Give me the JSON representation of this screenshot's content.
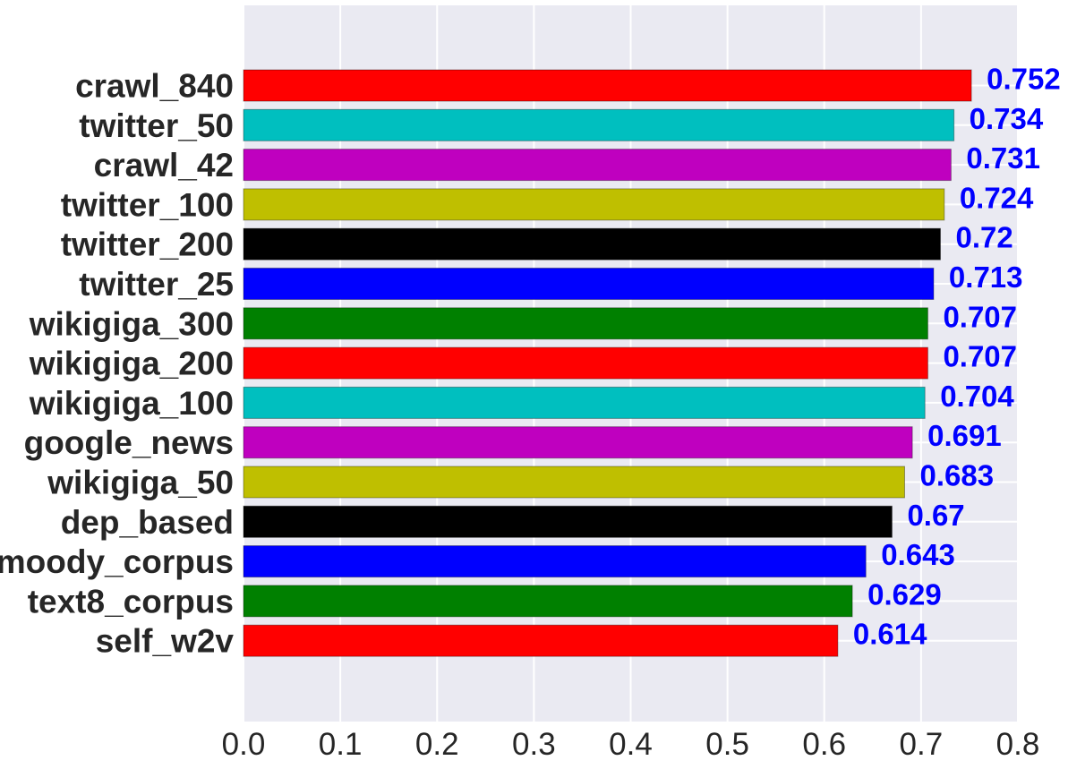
{
  "chart_data": {
    "type": "bar",
    "orientation": "horizontal",
    "title": "",
    "xlabel": "",
    "ylabel": "",
    "categories": [
      "crawl_840",
      "twitter_50",
      "crawl_42",
      "twitter_100",
      "twitter_200",
      "twitter_25",
      "wikigiga_300",
      "wikigiga_200",
      "wikigiga_100",
      "google_news",
      "wikigiga_50",
      "dep_based",
      "moody_corpus",
      "text8_corpus",
      "self_w2v"
    ],
    "values": [
      0.752,
      0.734,
      0.731,
      0.724,
      0.72,
      0.713,
      0.707,
      0.707,
      0.704,
      0.691,
      0.683,
      0.67,
      0.643,
      0.629,
      0.614
    ],
    "value_labels": [
      "0.752",
      "0.734",
      "0.731",
      "0.724",
      "0.72",
      "0.713",
      "0.707",
      "0.707",
      "0.704",
      "0.691",
      "0.683",
      "0.67",
      "0.643",
      "0.629",
      "0.614"
    ],
    "bar_colors": [
      "#ff0000",
      "#00bfbf",
      "#bf00bf",
      "#bfbf00",
      "#000000",
      "#0000ff",
      "#008000",
      "#ff0000",
      "#00bfbf",
      "#bf00bf",
      "#bfbf00",
      "#000000",
      "#0000ff",
      "#008000",
      "#ff0000"
    ],
    "value_label_color": "#0000ff",
    "xlim": [
      0.0,
      0.8
    ],
    "xticks": [
      "0.0",
      "0.1",
      "0.2",
      "0.3",
      "0.4",
      "0.5",
      "0.6",
      "0.7",
      "0.8"
    ],
    "tick_values": [
      0.0,
      0.1,
      0.2,
      0.3,
      0.4,
      0.5,
      0.6,
      0.7,
      0.8
    ],
    "grid": true,
    "background_color": "#eaeaf2",
    "grid_color": "#ffffff",
    "legend": "none"
  }
}
